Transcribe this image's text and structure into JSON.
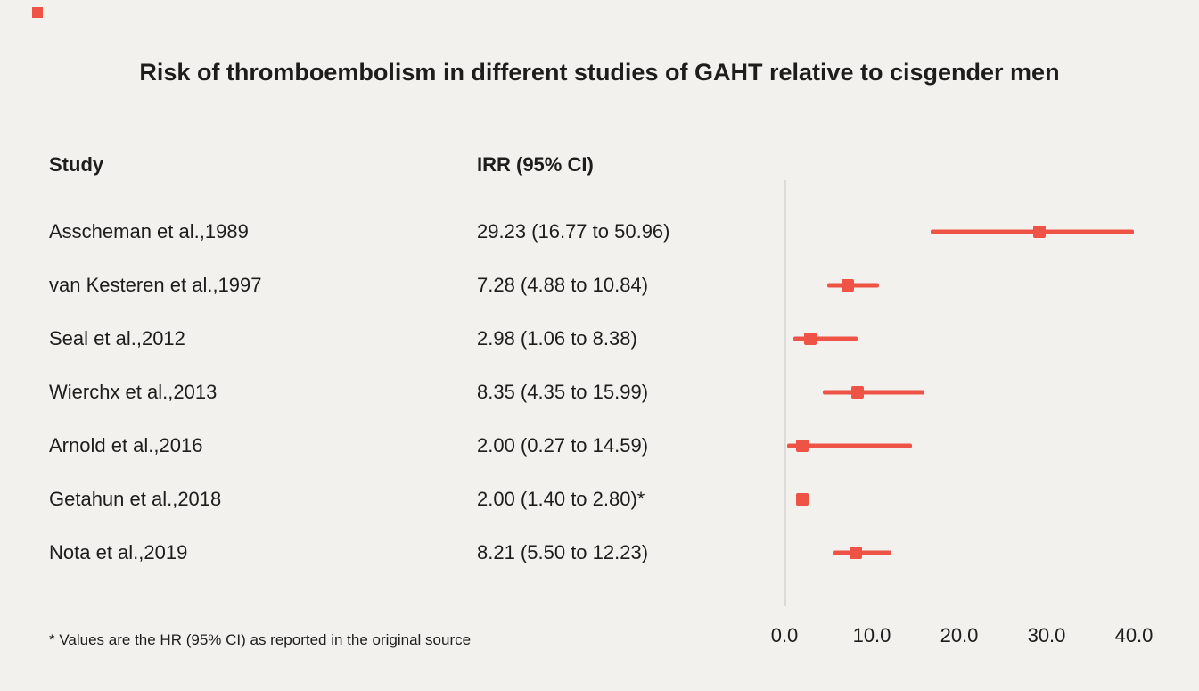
{
  "title": "Risk of thromboembolism in different studies of GAHT relative to cisgender men",
  "table": {
    "study_header": "Study",
    "irr_header": "IRR (95% CI)"
  },
  "footnote": "* Values are the HR (95% CI) as reported in the original source",
  "colors": {
    "accent": "#ee5345",
    "background": "#f2f1ee",
    "axis_line": "#dcdbd7",
    "text": "#1d1d1b"
  },
  "chart_data": {
    "type": "forest",
    "title": "Risk of thromboembolism in different studies of GAHT relative to cisgender men",
    "xlabel": "",
    "x_axis": {
      "min": 0,
      "max": 40,
      "ticks": [
        0,
        10,
        20,
        30,
        40
      ],
      "tick_labels": [
        "0.0",
        "10.0",
        "20.0",
        "30.0",
        "40.0"
      ]
    },
    "legend": "none",
    "grid": "off",
    "studies": [
      {
        "study": "Asscheman et al.,1989",
        "irr_text": "29.23 (16.77 to 50.96)",
        "irr": 29.23,
        "ci_low": 16.77,
        "ci_high": 50.96
      },
      {
        "study": "van Kesteren et al.,1997",
        "irr_text": "7.28 (4.88 to 10.84)",
        "irr": 7.28,
        "ci_low": 4.88,
        "ci_high": 10.84
      },
      {
        "study": "Seal et al.,2012",
        "irr_text": "2.98 (1.06 to 8.38)",
        "irr": 2.98,
        "ci_low": 1.06,
        "ci_high": 8.38
      },
      {
        "study": "Wierchx et al.,2013",
        "irr_text": "8.35 (4.35 to 15.99)",
        "irr": 8.35,
        "ci_low": 4.35,
        "ci_high": 15.99
      },
      {
        "study": "Arnold et al.,2016",
        "irr_text": "2.00 (0.27 to 14.59)",
        "irr": 2.0,
        "ci_low": 0.27,
        "ci_high": 14.59
      },
      {
        "study": "Getahun et al.,2018",
        "irr_text": "2.00 (1.40 to 2.80)*",
        "irr": 2.0,
        "ci_low": 1.4,
        "ci_high": 2.8
      },
      {
        "study": "Nota et al.,2019",
        "irr_text": "8.21 (5.50 to 12.23)",
        "irr": 8.21,
        "ci_low": 5.5,
        "ci_high": 12.23
      }
    ]
  }
}
